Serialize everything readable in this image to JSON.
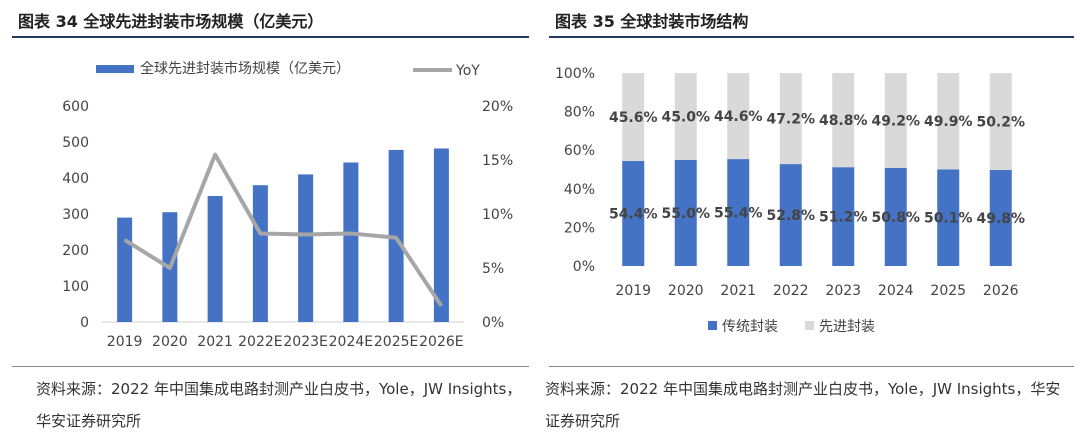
{
  "left": {
    "title": "图表 34 全球先进封装市场规模（亿美元）",
    "source": "资料来源：2022 年中国集成电路封测产业白皮书，Yole，JW Insights，华安证券研究所"
  },
  "right": {
    "title": "图表 35 全球封装市场结构",
    "source": "资料来源：2022 年中国集成电路封测产业白皮书，Yole，JW Insights，华安证券研究所"
  },
  "colors": {
    "bar": "#4472c4",
    "line": "#a6a6a6",
    "stack_top": "#d9d9d9",
    "title_rule": "#1f3864"
  },
  "chart_data": [
    {
      "type": "bar",
      "title": "",
      "categories": [
        "2019",
        "2020",
        "2021",
        "2022E",
        "2023E",
        "2024E",
        "2025E",
        "2026E"
      ],
      "series": [
        {
          "name": "全球先进封装市场规模（亿美元）",
          "axis": "left",
          "type": "bar",
          "values": [
            290,
            305,
            350,
            380,
            410,
            443,
            478,
            482
          ]
        },
        {
          "name": "YoY",
          "axis": "right",
          "type": "line",
          "values": [
            7.6,
            5.0,
            15.5,
            8.2,
            8.1,
            8.2,
            7.8,
            1.5
          ]
        }
      ],
      "y_left": {
        "min": 0,
        "max": 600,
        "ticks": [
          "0",
          "100",
          "200",
          "300",
          "400",
          "500",
          "600"
        ]
      },
      "y_right": {
        "min": 0,
        "max": 20,
        "ticks": [
          "0%",
          "5%",
          "10%",
          "15%",
          "20%"
        ]
      },
      "legend": "top",
      "grid": false
    },
    {
      "type": "bar",
      "stacked": true,
      "title": "",
      "categories": [
        "2019",
        "2020",
        "2021",
        "2022",
        "2023",
        "2024",
        "2025",
        "2026"
      ],
      "series": [
        {
          "name": "传统封装",
          "values": [
            54.4,
            55.0,
            55.4,
            52.8,
            51.2,
            50.8,
            50.1,
            49.8
          ],
          "labels": [
            "54.4%",
            "55.0%",
            "55.4%",
            "52.8%",
            "51.2%",
            "50.8%",
            "50.1%",
            "49.8%"
          ]
        },
        {
          "name": "先进封装",
          "values": [
            45.6,
            45.0,
            44.6,
            47.2,
            48.8,
            49.2,
            49.9,
            50.2
          ],
          "labels": [
            "45.6%",
            "45.0%",
            "44.6%",
            "47.2%",
            "48.8%",
            "49.2%",
            "49.9%",
            "50.2%"
          ]
        }
      ],
      "y": {
        "min": 0,
        "max": 100,
        "ticks": [
          "0%",
          "20%",
          "40%",
          "60%",
          "80%",
          "100%"
        ]
      },
      "legend": "bottom",
      "grid": false
    }
  ]
}
